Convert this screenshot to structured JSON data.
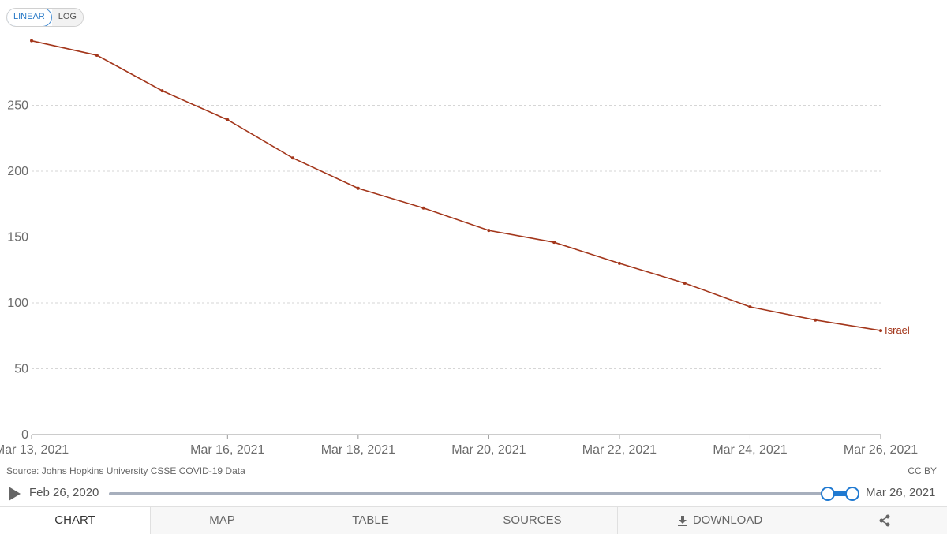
{
  "scale_toggle": {
    "linear_label": "LINEAR",
    "log_label": "LOG",
    "selected": "LINEAR"
  },
  "chart_data": {
    "type": "line",
    "x": [
      "Mar 13, 2021",
      "Mar 14, 2021",
      "Mar 15, 2021",
      "Mar 16, 2021",
      "Mar 17, 2021",
      "Mar 18, 2021",
      "Mar 19, 2021",
      "Mar 20, 2021",
      "Mar 21, 2021",
      "Mar 22, 2021",
      "Mar 23, 2021",
      "Mar 24, 2021",
      "Mar 25, 2021",
      "Mar 26, 2021"
    ],
    "x_tick_labels": [
      "Mar 13, 2021",
      "Mar 16, 2021",
      "Mar 18, 2021",
      "Mar 20, 2021",
      "Mar 22, 2021",
      "Mar 24, 2021",
      "Mar 26, 2021"
    ],
    "y_ticks": [
      0,
      50,
      100,
      150,
      200,
      250
    ],
    "ylim": [
      0,
      300
    ],
    "grid": true,
    "series": [
      {
        "name": "Israel",
        "color": "#a3361b",
        "values": [
          299,
          288,
          261,
          239,
          210,
          187,
          172,
          155,
          146,
          130,
          115,
          97,
          87,
          79
        ]
      }
    ]
  },
  "source_text": "Source: Johns Hopkins University CSSE COVID-19 Data",
  "license_text": "CC BY",
  "timeline": {
    "start_label": "Feb 26, 2020",
    "end_label": "Mar 26, 2021"
  },
  "tabs": [
    {
      "label": "CHART",
      "active": true
    },
    {
      "label": "MAP"
    },
    {
      "label": "TABLE"
    },
    {
      "label": "SOURCES"
    },
    {
      "label": "DOWNLOAD",
      "icon": "download-icon"
    },
    {
      "label": "",
      "icon": "share-icon"
    }
  ],
  "colors": {
    "series": "#a3361b",
    "accent": "#1f79d1"
  }
}
